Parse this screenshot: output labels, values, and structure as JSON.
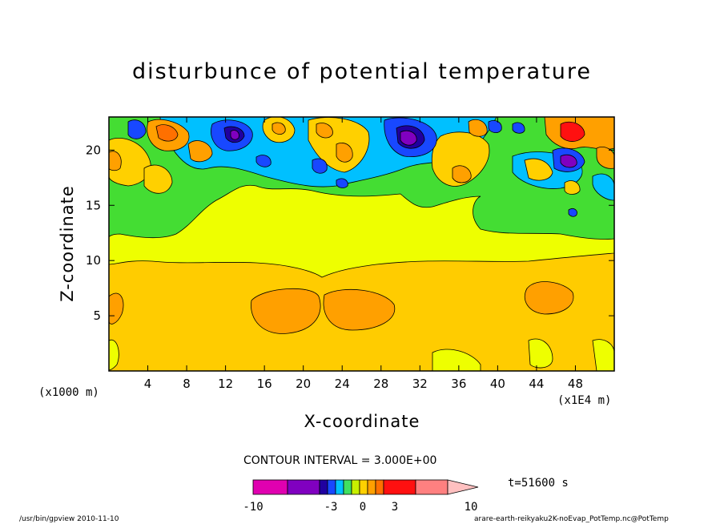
{
  "chart_data": {
    "type": "heatmap",
    "title": "disturbunce of potential temperature",
    "xlabel": "X-coordinate",
    "ylabel": "Z-coordinate",
    "x_unit_left": "(x1000 m)",
    "x_unit_right": "(x1E4 m)",
    "xlim": [
      0,
      52
    ],
    "ylim": [
      0,
      23
    ],
    "xticks": [
      "4",
      "8",
      "12",
      "16",
      "20",
      "24",
      "28",
      "32",
      "36",
      "40",
      "44",
      "48"
    ],
    "yticks": [
      "5",
      "10",
      "15",
      "20"
    ],
    "contour_interval": "CONTOUR INTERVAL = 3.000E+00",
    "time_label": "t=51600 s",
    "colorbar": {
      "ticks": [
        "-10",
        "-3",
        "0",
        "3",
        "10"
      ],
      "colors": [
        "#e000b0",
        "#8000c0",
        "#2000a0",
        "#1848ff",
        "#00c0ff",
        "#40e060",
        "#c8f000",
        "#ffd000",
        "#ffa000",
        "#ff7000",
        "#ff1010",
        "#ff8080",
        "#ffc0c0"
      ]
    },
    "levels": [
      {
        "z_range": [
          0,
          9
        ],
        "value": 1.5,
        "color": "#ffcc00"
      },
      {
        "z_range": [
          9,
          13
        ],
        "value": 0,
        "color": "#eeff00"
      },
      {
        "z_range": [
          13,
          17
        ],
        "value": -1,
        "color": "#44dd33"
      },
      {
        "z_range": [
          17,
          23
        ],
        "value": "mixed",
        "color": "mixed"
      }
    ],
    "grid": false
  },
  "footer": {
    "left": "/usr/bin/gpview  2010-11-10",
    "right": "arare-earth-reikyaku2K-noEvap_PotTemp.nc@PotTemp"
  }
}
